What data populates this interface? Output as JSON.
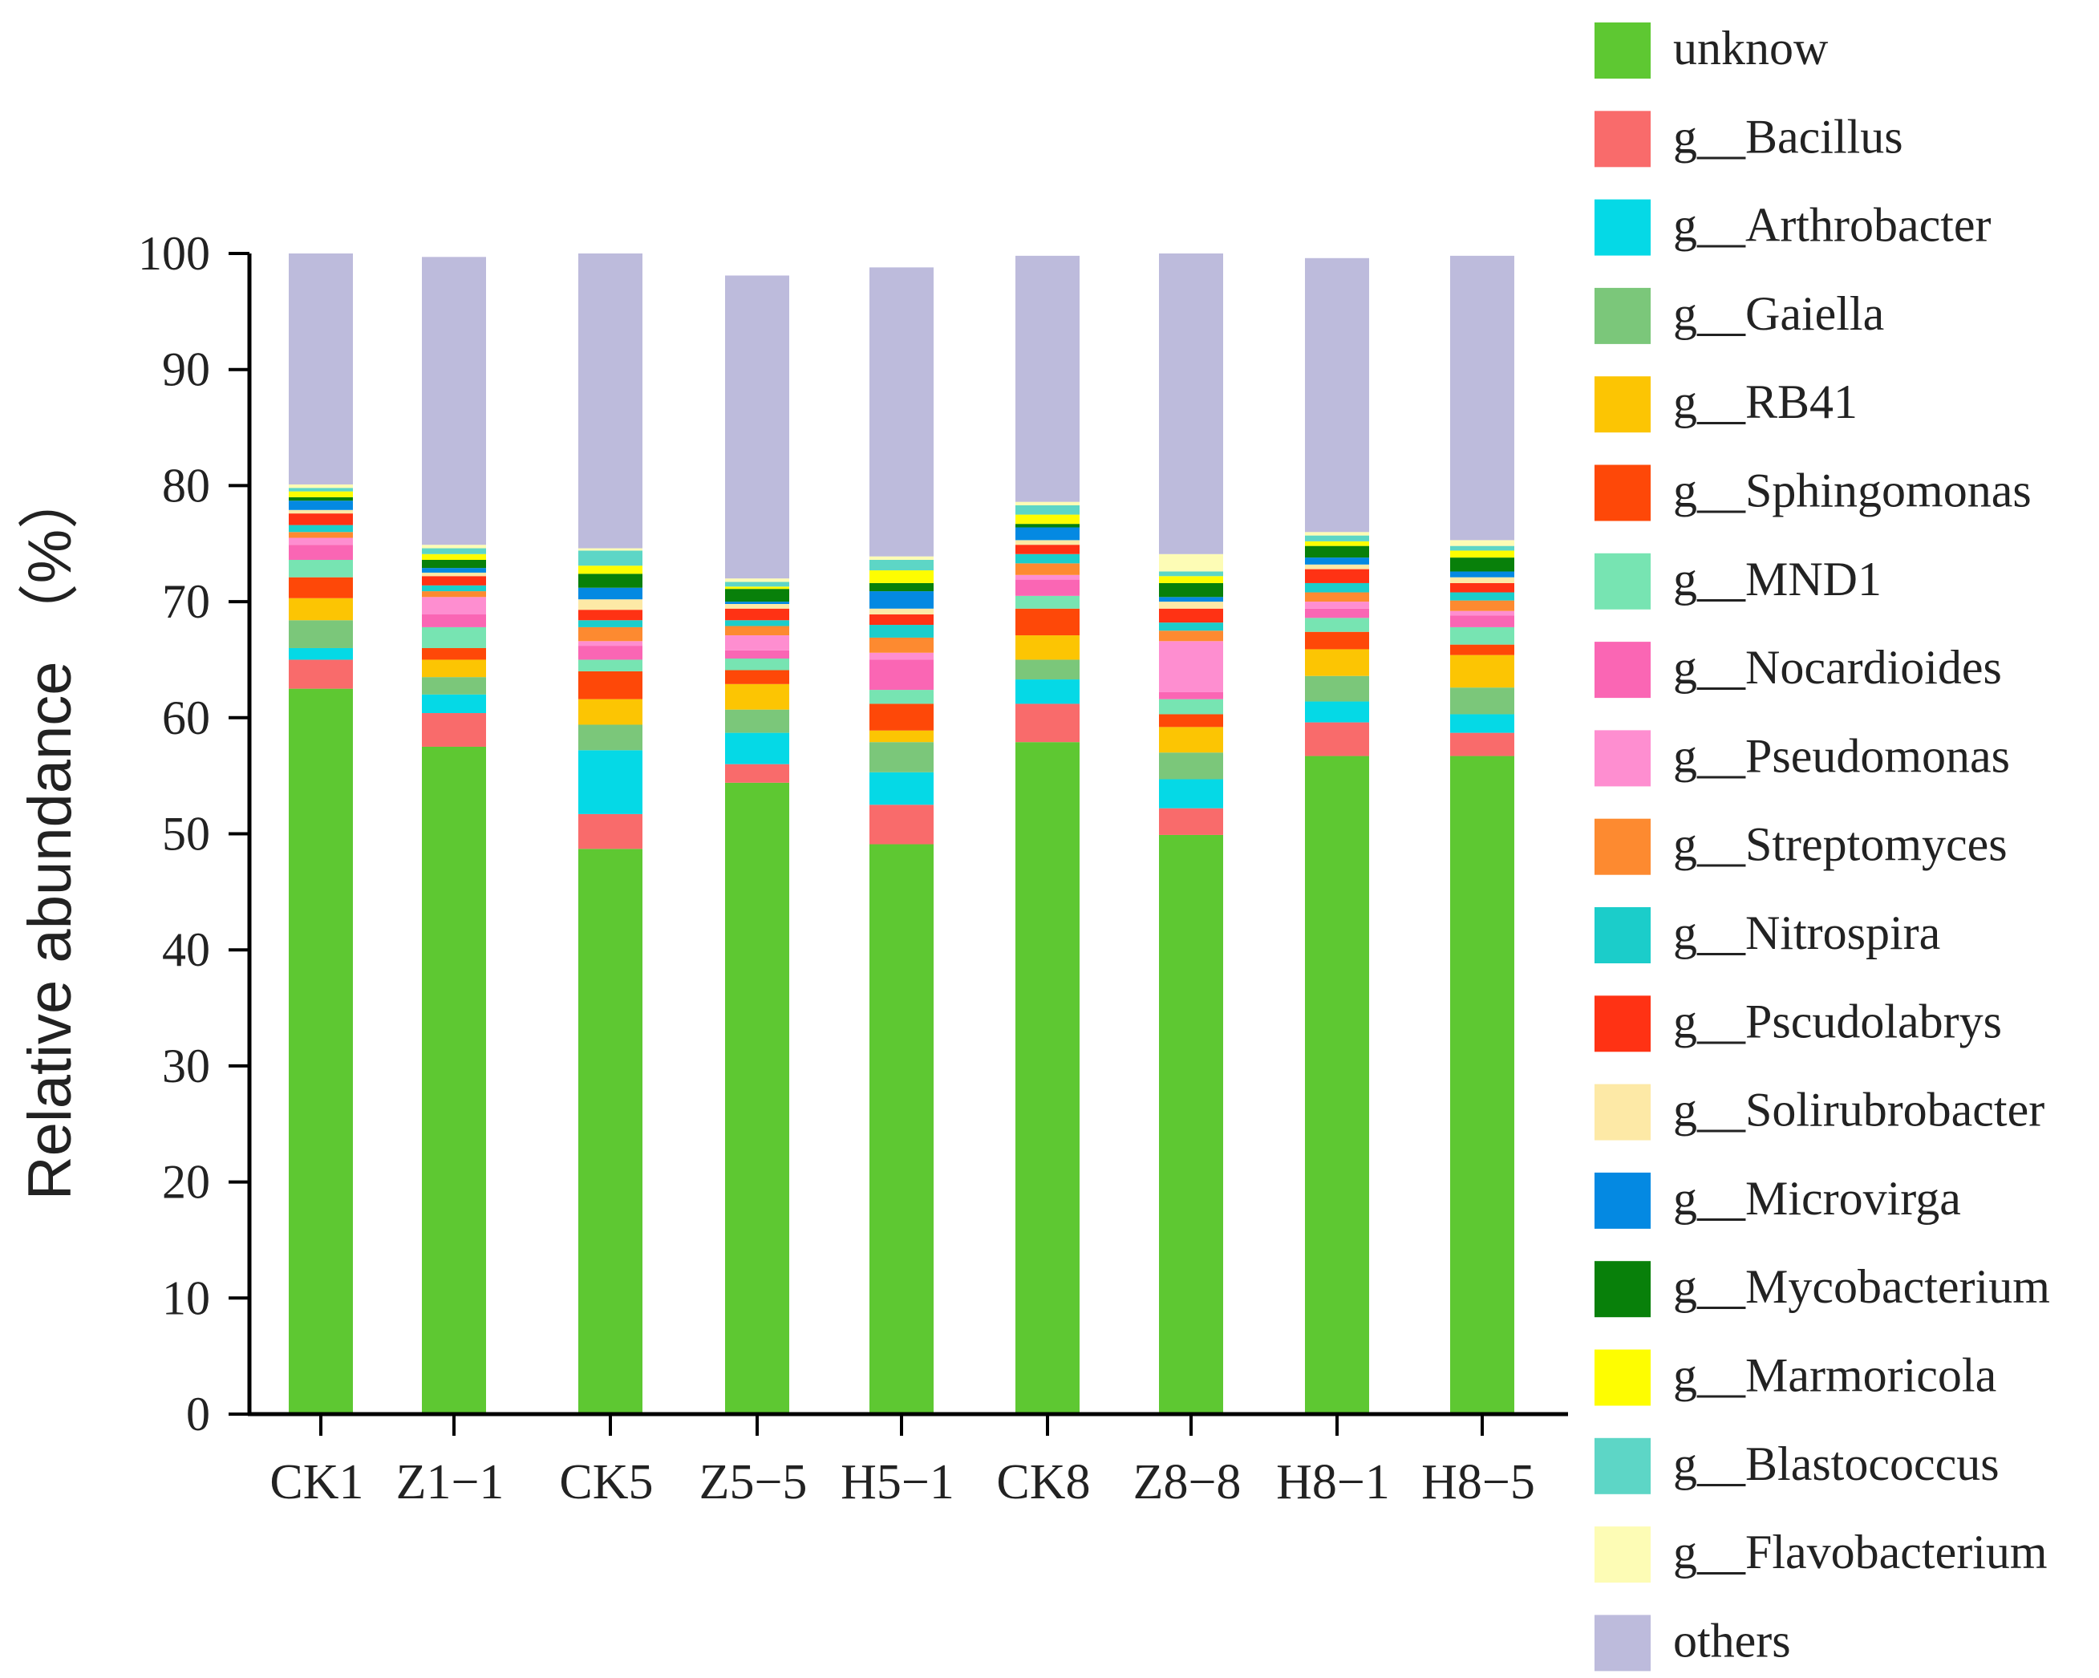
{
  "chart_data": {
    "type": "bar",
    "stacked": true,
    "title": "",
    "xlabel": "",
    "ylabel": "Relative abundance （%）",
    "ylim": [
      0,
      100
    ],
    "yticks": [
      "0",
      "10",
      "20",
      "30",
      "40",
      "50",
      "60",
      "70",
      "80",
      "90",
      "100"
    ],
    "categories": [
      "CK1",
      "Z1−1",
      "CK5",
      "Z5−5",
      "H5−1",
      "CK8",
      "Z8−8",
      "H8−1",
      "H8−5"
    ],
    "series": [
      {
        "name": "unknow",
        "color": "#5ec832",
        "values": [
          62.5,
          57.5,
          48.7,
          54.4,
          49.1,
          57.9,
          49.9,
          56.7,
          56.7
        ]
      },
      {
        "name": "g__Bacillus",
        "color": "#f96b6b",
        "values": [
          2.5,
          2.9,
          3.0,
          1.6,
          3.4,
          3.3,
          2.3,
          2.9,
          2.0
        ]
      },
      {
        "name": "g__Arthrobacter",
        "color": "#05d9e6",
        "values": [
          1.0,
          1.6,
          5.5,
          2.7,
          2.8,
          2.1,
          2.5,
          1.8,
          1.6
        ]
      },
      {
        "name": "g__Gaiella",
        "color": "#7bc77a",
        "values": [
          2.4,
          1.5,
          2.2,
          2.0,
          2.6,
          1.7,
          2.3,
          2.2,
          2.3
        ]
      },
      {
        "name": "g__RB41",
        "color": "#fcc503",
        "values": [
          1.9,
          1.5,
          2.2,
          2.2,
          1.0,
          2.1,
          2.2,
          2.3,
          2.8
        ]
      },
      {
        "name": "g__Sphingomonas",
        "color": "#fe4808",
        "values": [
          1.8,
          1.0,
          2.4,
          1.2,
          2.3,
          2.3,
          1.1,
          1.5,
          0.9
        ]
      },
      {
        "name": "g__MND1",
        "color": "#77e4b2",
        "values": [
          1.5,
          1.8,
          1.0,
          1.0,
          1.2,
          1.1,
          1.3,
          1.2,
          1.5
        ]
      },
      {
        "name": "g__Nocardioides",
        "color": "#fa66b4",
        "values": [
          1.3,
          1.1,
          1.2,
          0.7,
          2.6,
          1.4,
          0.6,
          0.8,
          1.0
        ]
      },
      {
        "name": "g__Pseudomonas",
        "color": "#fe8ed0",
        "values": [
          0.6,
          1.5,
          0.4,
          1.3,
          0.6,
          0.4,
          4.4,
          0.6,
          0.4
        ]
      },
      {
        "name": "g__Streptomyces",
        "color": "#fd8a30",
        "values": [
          0.5,
          0.5,
          1.2,
          0.8,
          1.3,
          1.0,
          0.9,
          0.8,
          0.9
        ]
      },
      {
        "name": "g__Nitrospira",
        "color": "#1bcdca",
        "values": [
          0.6,
          0.5,
          0.6,
          0.5,
          1.1,
          0.8,
          0.7,
          0.8,
          0.7
        ]
      },
      {
        "name": "g__Pscudolabrys",
        "color": "#ff3214",
        "values": [
          1.0,
          0.8,
          0.9,
          1.0,
          0.9,
          0.8,
          1.2,
          1.2,
          0.8
        ]
      },
      {
        "name": "g__Solirubrobacter",
        "color": "#fde9a6",
        "values": [
          0.3,
          0.3,
          0.9,
          0.4,
          0.5,
          0.4,
          0.6,
          0.4,
          0.5
        ]
      },
      {
        "name": "g__Microvirga",
        "color": "#0489e2",
        "values": [
          0.8,
          0.4,
          1.0,
          0.2,
          1.5,
          1.1,
          0.4,
          0.6,
          0.5
        ]
      },
      {
        "name": "g__Mycobacterium",
        "color": "#08800a",
        "values": [
          0.3,
          0.7,
          1.2,
          1.1,
          0.7,
          0.3,
          1.2,
          1.0,
          1.2
        ]
      },
      {
        "name": "g__Marmoricola",
        "color": "#fefd01",
        "values": [
          0.5,
          0.5,
          0.7,
          0.2,
          1.1,
          0.8,
          0.6,
          0.4,
          0.6
        ]
      },
      {
        "name": "g__Blastococcus",
        "color": "#5dd6c6",
        "values": [
          0.3,
          0.5,
          1.3,
          0.4,
          0.9,
          0.8,
          0.4,
          0.5,
          0.4
        ]
      },
      {
        "name": "g__Flavobacterium",
        "color": "#fdfcb5",
        "values": [
          0.3,
          0.3,
          0.2,
          0.3,
          0.3,
          0.3,
          1.5,
          0.3,
          0.5
        ]
      },
      {
        "name": "others",
        "color": "#bdbbdc",
        "values": [
          20.1,
          24.8,
          25.6,
          26.1,
          24.9,
          21.2,
          25.9,
          23.6,
          24.5
        ]
      }
    ]
  }
}
